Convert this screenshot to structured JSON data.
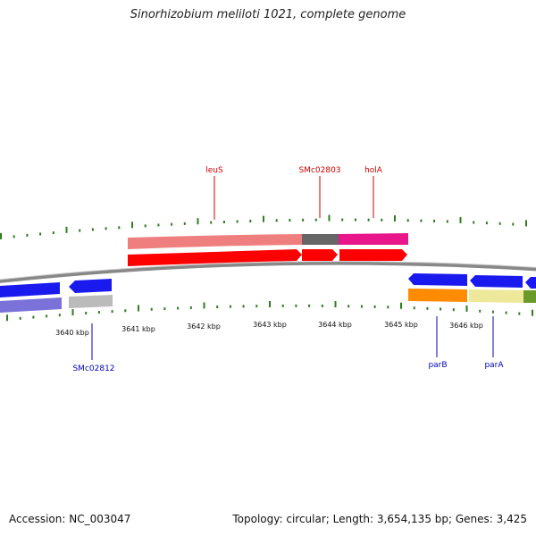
{
  "title": "Sinorhizobium meliloti 1021, complete genome",
  "footer": {
    "accession": "Accession: NC_003047",
    "summary": "Topology: circular; Length: 3,654,135 bp; Genes: 3,425"
  },
  "colors": {
    "backbone": "#888888",
    "tick": "#2e7d1e",
    "top_label": "#cc0000",
    "bottom_label": "#0000bb"
  },
  "kbp_labels": [
    "3640 kbp",
    "3641 kbp",
    "3642 kbp",
    "3643 kbp",
    "3644 kbp",
    "3645 kbp",
    "3646 kbp"
  ],
  "gene_labels": {
    "leuS": "leuS",
    "smc02803": "SMc02803",
    "hola": "holA",
    "smc02812": "SMc02812",
    "parb": "parB",
    "para": "parA"
  }
}
